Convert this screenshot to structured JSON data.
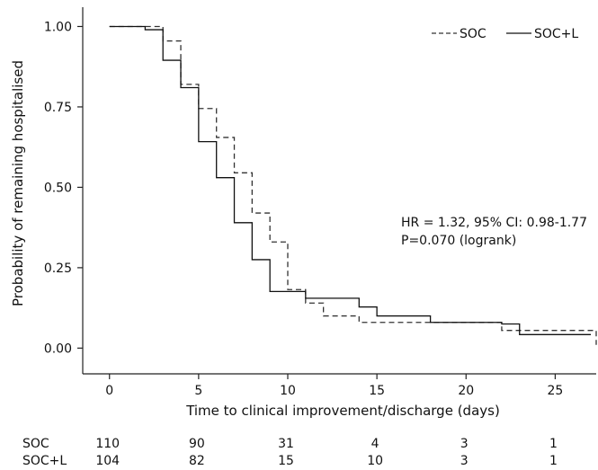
{
  "chart_data": {
    "type": "line",
    "subtype": "kaplan-meier step curves",
    "xlabel": "Time to clinical improvement/discharge (days)",
    "ylabel": "Probability of remaining hospitalised",
    "xlim": [
      -1.5,
      27.3
    ],
    "ylim": [
      -0.08,
      1.06
    ],
    "x_ticks": [
      0,
      5,
      10,
      15,
      20,
      25
    ],
    "x_tick_labels": [
      "0",
      "5",
      "10",
      "15",
      "20",
      "25"
    ],
    "y_ticks": [
      0,
      0.25,
      0.5,
      0.75,
      1
    ],
    "y_tick_labels": [
      "0.00",
      "0.25",
      "0.50",
      "0.75",
      "1.00"
    ],
    "grid": false,
    "legend": {
      "position": "top-right"
    },
    "series": [
      {
        "name": "SOC",
        "line_style": "dashed",
        "color": "#333333",
        "steps": [
          [
            0,
            1.0
          ],
          [
            3,
            0.955
          ],
          [
            4,
            0.82
          ],
          [
            5,
            0.745
          ],
          [
            6,
            0.655
          ],
          [
            7,
            0.545
          ],
          [
            8,
            0.42
          ],
          [
            9,
            0.33
          ],
          [
            10,
            0.182
          ],
          [
            11,
            0.14
          ],
          [
            12,
            0.1
          ],
          [
            14,
            0.08
          ],
          [
            22,
            0.055
          ],
          [
            27.3,
            0.01
          ]
        ]
      },
      {
        "name": "SOC+L",
        "line_style": "solid",
        "color": "#111111",
        "steps": [
          [
            0,
            1.0
          ],
          [
            2,
            0.99
          ],
          [
            3,
            0.895
          ],
          [
            4,
            0.81
          ],
          [
            5,
            0.642
          ],
          [
            6,
            0.53
          ],
          [
            7,
            0.39
          ],
          [
            8,
            0.275
          ],
          [
            9,
            0.176
          ],
          [
            11,
            0.155
          ],
          [
            14,
            0.128
          ],
          [
            15,
            0.1
          ],
          [
            18,
            0.08
          ],
          [
            22,
            0.075
          ],
          [
            23,
            0.042
          ],
          [
            27,
            0.042
          ]
        ]
      }
    ],
    "annotations": [
      "HR = 1.32, 95% CI: 0.98-1.77",
      "P=0.070 (logrank)"
    ],
    "risk_table": {
      "times": [
        0,
        5,
        10,
        15,
        20,
        25
      ],
      "rows": [
        {
          "label": "SOC",
          "values": [
            "110",
            "90",
            "31",
            "4",
            "3",
            "1"
          ]
        },
        {
          "label": "SOC+L",
          "values": [
            "104",
            "82",
            "15",
            "10",
            "3",
            "1"
          ]
        }
      ]
    }
  }
}
